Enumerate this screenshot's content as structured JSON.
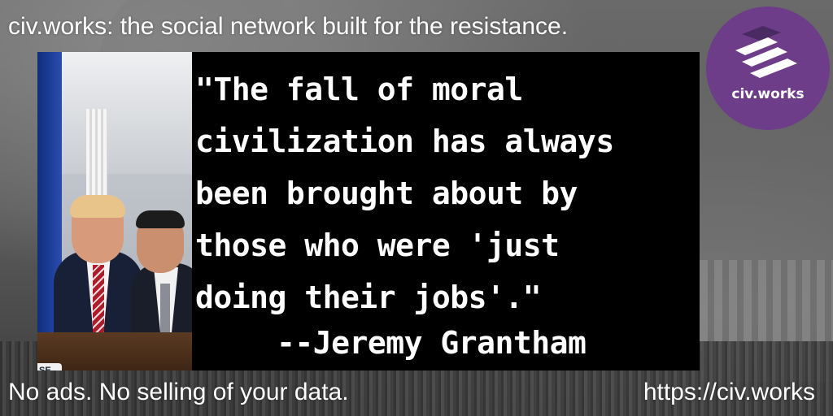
{
  "header": {
    "tagline": "civ.works: the social network built for the resistance."
  },
  "footer": {
    "left_text": "No ads. No selling of your data.",
    "url": "https://civ.works"
  },
  "logo": {
    "label": "civ.works",
    "background_color": "#6d3d8a",
    "icon": "civ-works-logo-mark"
  },
  "quote": {
    "lines": [
      "\"The fall of moral",
      "civilization has always",
      "been brought about by",
      "those who were 'just",
      "doing their jobs'.\""
    ],
    "author": "--Jeremy Grantham"
  },
  "photo": {
    "seal_text": "SE"
  }
}
